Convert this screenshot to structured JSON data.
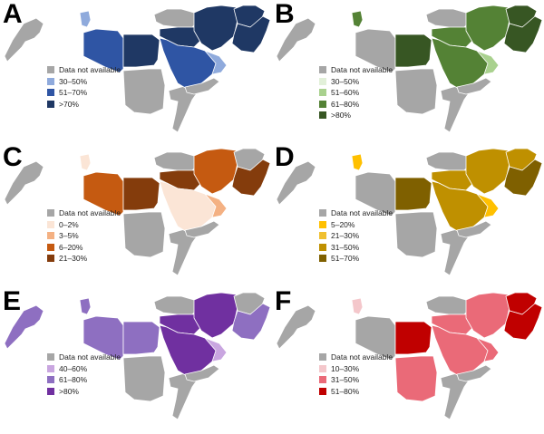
{
  "colors": {
    "na": "#a6a6a6",
    "border": "#ffffff"
  },
  "panels": [
    {
      "letter": "A",
      "legend": [
        {
          "label": "Data not available",
          "color": "#a6a6a6"
        },
        {
          "label": "30–50%",
          "color": "#8faadc"
        },
        {
          "label": "51–70%",
          "color": "#2f55a4"
        },
        {
          "label": ">70%",
          "color": "#1f3864"
        }
      ],
      "regions": {
        "maghreb": "na",
        "lev": 1,
        "egypt": 3,
        "libya": 2,
        "sudan": "na",
        "arab": 2,
        "arabS": 1,
        "yemen": "na",
        "iraq": 3,
        "iran": 3,
        "afg": 3,
        "pak": 3,
        "turk": "na",
        "somalia": "na"
      }
    },
    {
      "letter": "B",
      "legend": [
        {
          "label": "Data not available",
          "color": "#a6a6a6"
        },
        {
          "label": "30–50%",
          "color": "#e2f0d9"
        },
        {
          "label": "51–60%",
          "color": "#a9d18e"
        },
        {
          "label": "61–80%",
          "color": "#548235"
        },
        {
          "label": ">80%",
          "color": "#375623"
        }
      ],
      "regions": {
        "maghreb": "na",
        "lev": 3,
        "egypt": 4,
        "libya": "na",
        "sudan": "na",
        "arab": 3,
        "arabS": 2,
        "yemen": "na",
        "iraq": 3,
        "iran": 3,
        "afg": 4,
        "pak": 4,
        "turk": "na",
        "somalia": "na"
      }
    },
    {
      "letter": "C",
      "legend": [
        {
          "label": "Data not available",
          "color": "#a6a6a6"
        },
        {
          "label": "0–2%",
          "color": "#fbe5d6"
        },
        {
          "label": "3–5%",
          "color": "#f4b183"
        },
        {
          "label": "6–20%",
          "color": "#c55a11"
        },
        {
          "label": "21–30%",
          "color": "#843c0c"
        }
      ],
      "regions": {
        "maghreb": "na",
        "lev": 1,
        "egypt": 4,
        "libya": 3,
        "sudan": "na",
        "arab": 1,
        "arabS": 2,
        "yemen": "na",
        "iraq": 4,
        "iran": 3,
        "afg": "na",
        "pak": 4,
        "turk": "na",
        "somalia": "na"
      }
    },
    {
      "letter": "D",
      "legend": [
        {
          "label": "Data not available",
          "color": "#a6a6a6"
        },
        {
          "label": "5–20%",
          "color": "#ffc000"
        },
        {
          "label": "21–30%",
          "color": "#f0c030"
        },
        {
          "label": "31–50%",
          "color": "#bf9000"
        },
        {
          "label": "51–70%",
          "color": "#7f6000"
        }
      ],
      "regions": {
        "maghreb": "na",
        "lev": 1,
        "egypt": 4,
        "libya": "na",
        "sudan": "na",
        "arab": 3,
        "arabS": 1,
        "yemen": "na",
        "iraq": 3,
        "iran": 3,
        "afg": 3,
        "pak": 4,
        "turk": "na",
        "somalia": "na"
      }
    },
    {
      "letter": "E",
      "legend": [
        {
          "label": "Data not available",
          "color": "#a6a6a6"
        },
        {
          "label": "40–60%",
          "color": "#c9a6e0"
        },
        {
          "label": "61–80%",
          "color": "#8e6fc1"
        },
        {
          "label": ">80%",
          "color": "#7030a0"
        }
      ],
      "regions": {
        "maghreb": 2,
        "lev": 2,
        "egypt": 2,
        "libya": 2,
        "sudan": "na",
        "arab": 3,
        "arabS": 1,
        "yemen": "na",
        "iraq": 3,
        "iran": 3,
        "afg": "na",
        "pak": 2,
        "turk": "na",
        "somalia": "na"
      }
    },
    {
      "letter": "F",
      "legend": [
        {
          "label": "Data not available",
          "color": "#a6a6a6"
        },
        {
          "label": "10–30%",
          "color": "#f4c7cb"
        },
        {
          "label": "31–50%",
          "color": "#ea6a78"
        },
        {
          "label": "51–80%",
          "color": "#c00000"
        }
      ],
      "regions": {
        "maghreb": "na",
        "lev": 1,
        "egypt": 3,
        "libya": "na",
        "sudan": 2,
        "arab": 2,
        "arabS": 2,
        "yemen": "na",
        "iraq": 2,
        "iran": 2,
        "afg": 3,
        "pak": 3,
        "turk": "na",
        "somalia": "na"
      }
    }
  ]
}
